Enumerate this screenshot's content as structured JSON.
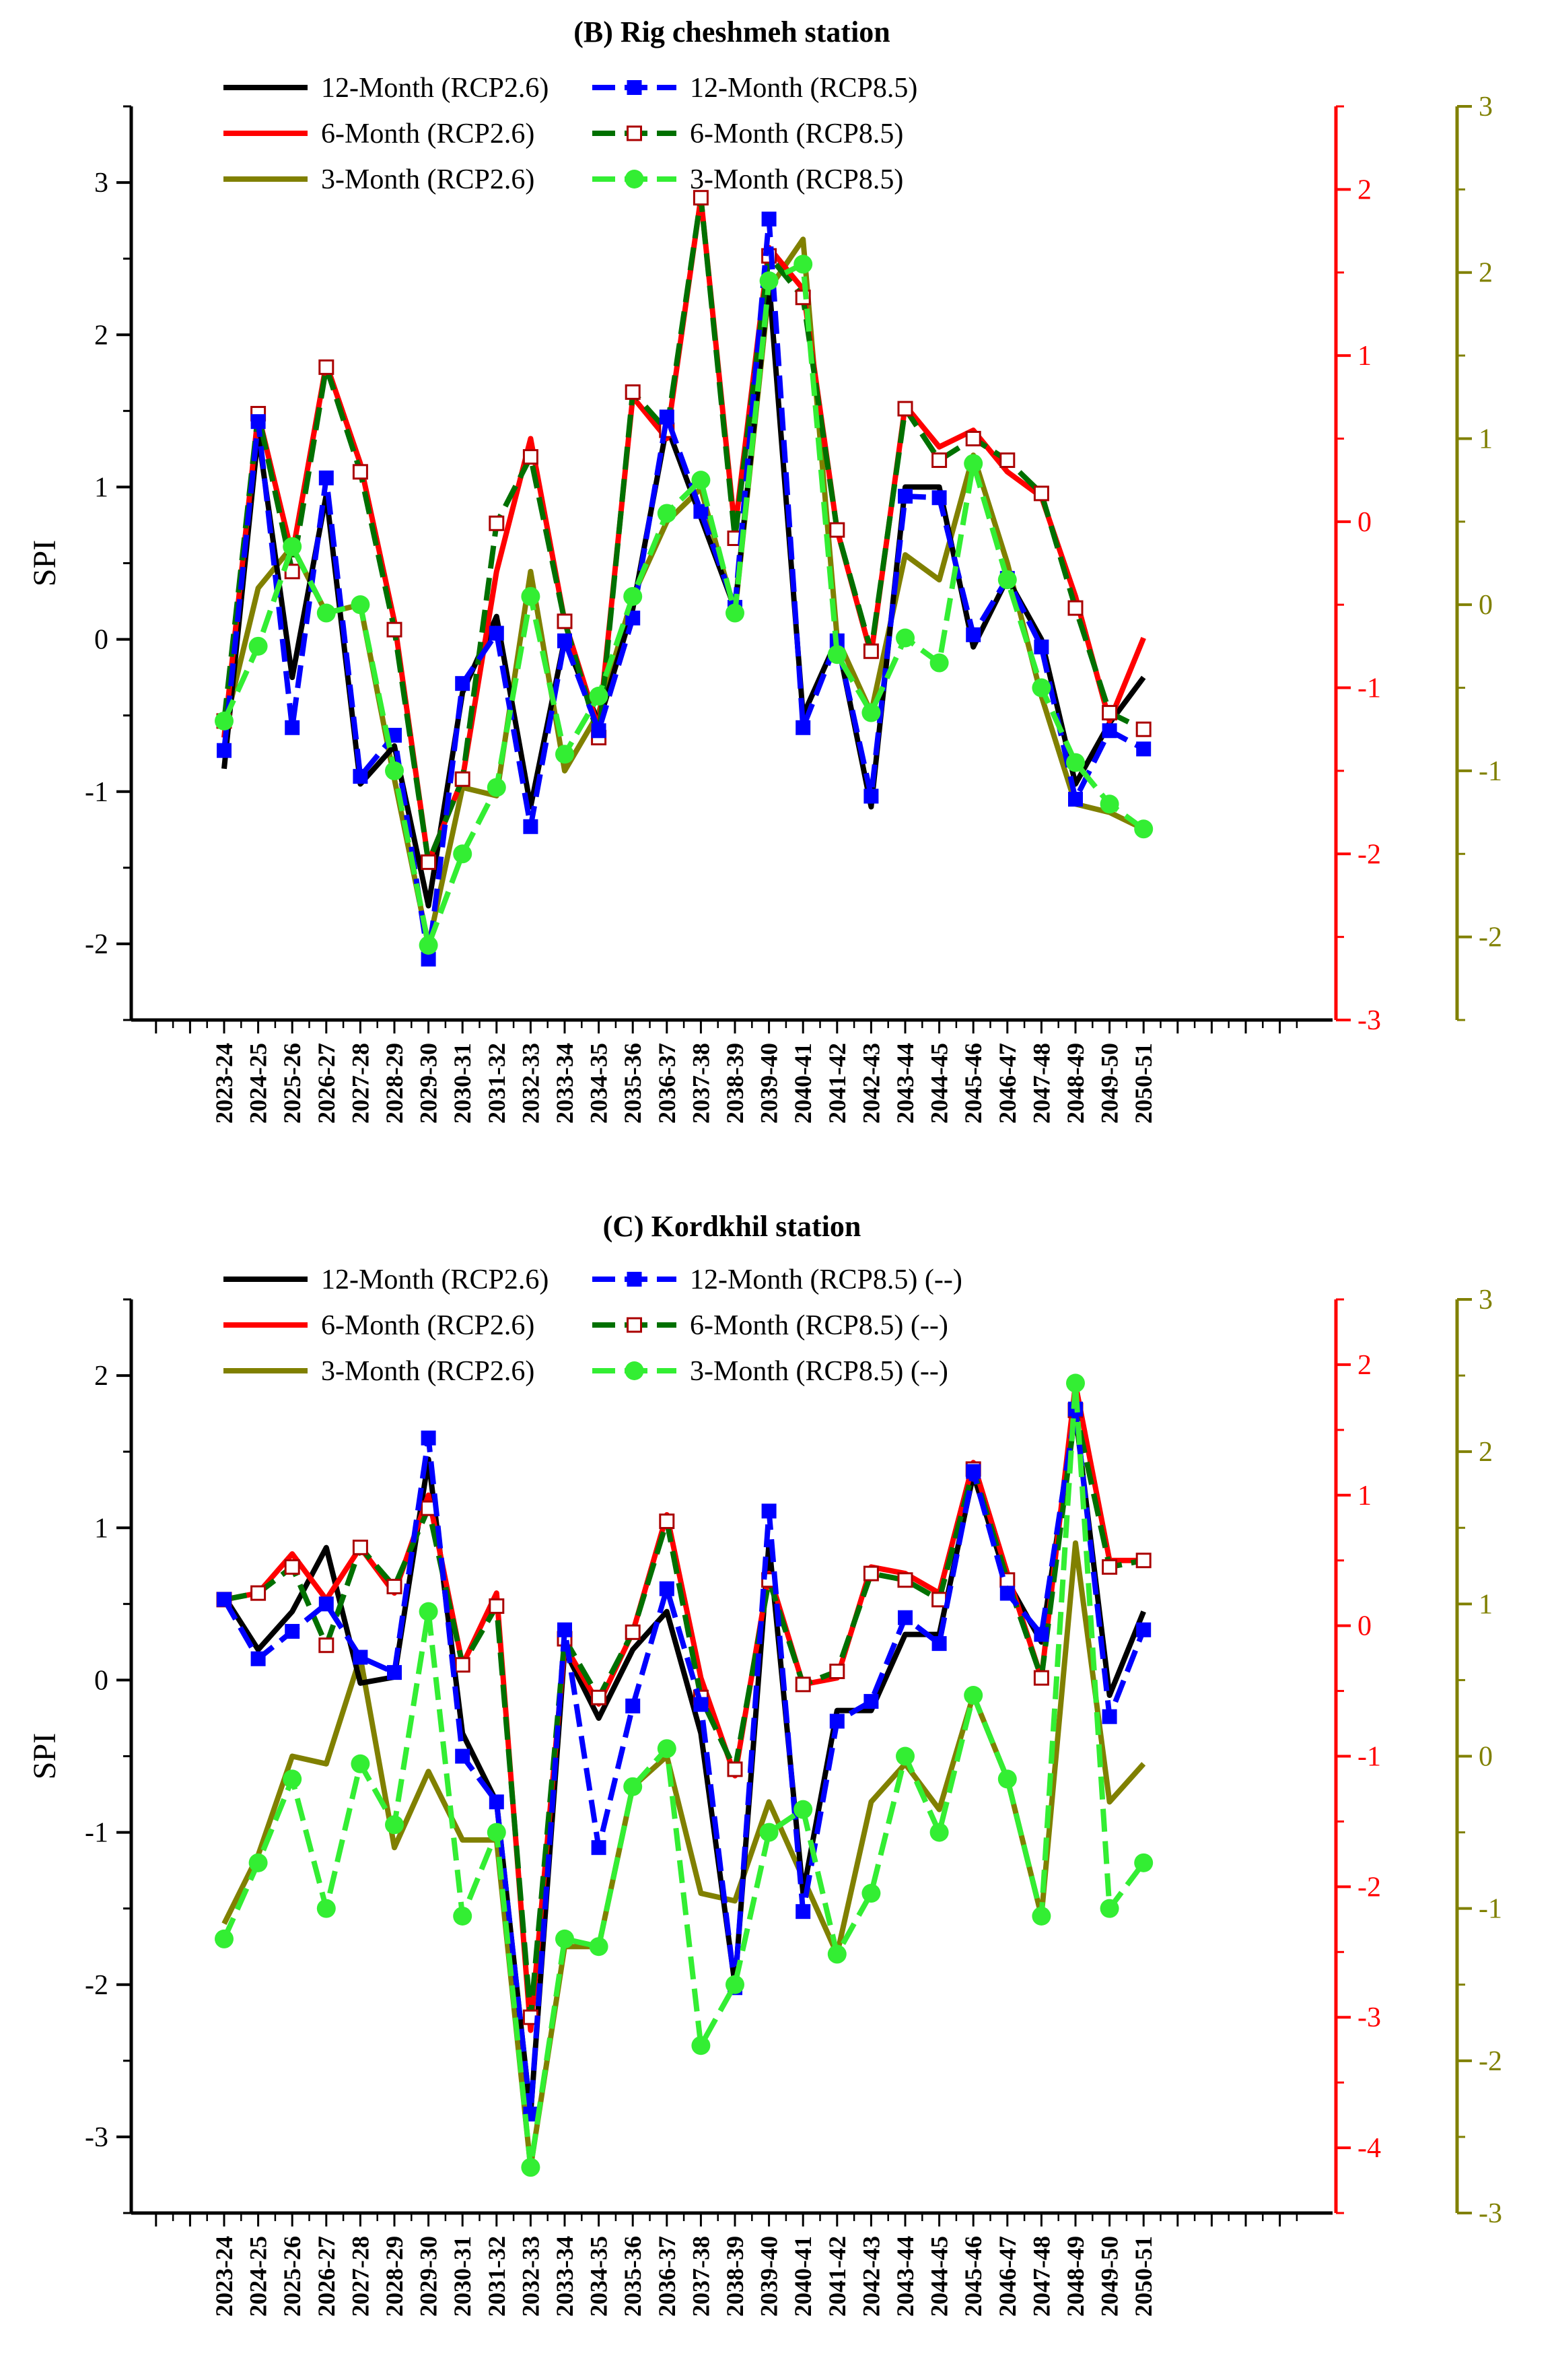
{
  "chart_data": [
    {
      "type": "line",
      "title": "(B) Rig cheshmeh station",
      "ylabel": "SPI",
      "xlabel": "",
      "categories": [
        "2023-24",
        "2024-25",
        "2025-26",
        "2026-27",
        "2027-28",
        "2028-29",
        "2029-30",
        "2030-31",
        "2031-32",
        "2032-33",
        "2033-34",
        "2034-35",
        "2035-36",
        "2036-37",
        "2037-38",
        "2038-39",
        "2039-40",
        "2040-41",
        "2041-42",
        "2042-43",
        "2043-44",
        "2044-45",
        "2045-46",
        "2046-47",
        "2047-48",
        "2048-49",
        "2049-50",
        "2050-51"
      ],
      "axes": {
        "left": {
          "ylim": [
            -2.5,
            3.5
          ],
          "ticks": [
            "-2",
            "-1",
            "0",
            "1",
            "2",
            "3"
          ],
          "tick_values": [
            -2,
            -1,
            0,
            1,
            2,
            3
          ],
          "color": "#000000"
        },
        "right1": {
          "ylim": [
            -3,
            2.5
          ],
          "ticks": [
            "-3",
            "-2",
            "-1",
            "0",
            "1",
            "2"
          ],
          "tick_values": [
            -3,
            -2,
            -1,
            0,
            1,
            2
          ],
          "color": "#ff0000"
        },
        "right2": {
          "ylim": [
            -2.5,
            3
          ],
          "ticks": [
            "-2",
            "-1",
            "0",
            "1",
            "2",
            "3"
          ],
          "tick_values": [
            -2,
            -1,
            0,
            1,
            2,
            3
          ],
          "color": "#808000"
        }
      },
      "legend": [
        "12-Month (RCP2.6)",
        "12-Month (RCP8.5)",
        "6-Month (RCP2.6)",
        "6-Month (RCP8.5)",
        "3-Month (RCP2.6)",
        "3-Month (RCP8.5)"
      ],
      "series": [
        {
          "name": "12-Month (RCP2.6)",
          "axis": "left",
          "color": "#000000",
          "style": "solid",
          "marker": "none",
          "values": [
            -0.85,
            1.35,
            -0.25,
            0.95,
            -0.95,
            -0.7,
            -1.75,
            -0.35,
            0.15,
            -1.1,
            0.0,
            -0.55,
            0.2,
            1.4,
            0.8,
            0.2,
            2.35,
            -0.5,
            0.0,
            -1.1,
            1.0,
            1.0,
            -0.05,
            0.4,
            0.0,
            -0.95,
            -0.55,
            -0.25
          ]
        },
        {
          "name": "12-Month (RCP8.5)",
          "axis": "left",
          "color": "#0000ff",
          "style": "dashed",
          "marker": "square-filled",
          "values": [
            -0.73,
            1.43,
            -0.58,
            1.06,
            -0.9,
            -0.63,
            -2.1,
            -0.29,
            0.04,
            -1.23,
            -0.01,
            -0.6,
            0.14,
            1.46,
            0.84,
            0.21,
            2.76,
            -0.58,
            -0.01,
            -1.03,
            0.94,
            0.93,
            0.03,
            0.4,
            -0.05,
            -1.05,
            -0.6,
            -0.72
          ]
        },
        {
          "name": "6-Month (RCP2.6)",
          "axis": "right1",
          "color": "#ff0000",
          "style": "solid",
          "marker": "none",
          "values": [
            -1.3,
            0.65,
            -0.2,
            0.95,
            0.35,
            -0.6,
            -2.05,
            -1.55,
            -0.3,
            0.5,
            -0.6,
            -1.25,
            0.75,
            0.5,
            1.95,
            -0.05,
            1.65,
            1.4,
            -0.05,
            -0.8,
            0.7,
            0.45,
            0.55,
            0.3,
            0.15,
            -0.45,
            -1.2,
            -0.7
          ]
        },
        {
          "name": "6-Month (RCP8.5)",
          "axis": "right1",
          "color": "#007000",
          "style": "dashed",
          "marker": "square-open-darkred",
          "values": [
            -1.2,
            0.65,
            -0.3,
            0.93,
            0.3,
            -0.65,
            -2.05,
            -1.55,
            -0.01,
            0.39,
            -0.6,
            -1.3,
            0.78,
            0.55,
            1.95,
            -0.1,
            1.6,
            1.35,
            -0.05,
            -0.78,
            0.68,
            0.37,
            0.5,
            0.37,
            0.17,
            -0.52,
            -1.15,
            -1.25
          ]
        },
        {
          "name": "3-Month (RCP2.6)",
          "axis": "right2",
          "color": "#808000",
          "style": "solid",
          "marker": "none",
          "values": [
            -0.75,
            0.1,
            0.35,
            -0.05,
            0.0,
            -1.05,
            -2.05,
            -1.1,
            -1.15,
            0.2,
            -1.0,
            -0.65,
            0.05,
            0.5,
            0.7,
            -0.05,
            1.9,
            2.2,
            -0.2,
            -0.65,
            0.3,
            0.15,
            0.9,
            0.25,
            -0.55,
            -1.2,
            -1.25,
            -1.35
          ]
        },
        {
          "name": "3-Month (RCP8.5)",
          "axis": "right2",
          "color": "#33ee33",
          "style": "dashed",
          "marker": "circle-filled",
          "values": [
            -0.7,
            -0.25,
            0.35,
            -0.05,
            0.0,
            -1.0,
            -2.05,
            -1.5,
            -1.1,
            0.05,
            -0.9,
            -0.55,
            0.05,
            0.55,
            0.75,
            -0.05,
            1.95,
            2.05,
            -0.3,
            -0.65,
            -0.2,
            -0.35,
            0.85,
            0.15,
            -0.5,
            -0.95,
            -1.2,
            -1.35
          ]
        }
      ]
    },
    {
      "type": "line",
      "title": "(C) Kordkhil station",
      "ylabel": "SPI",
      "xlabel": "",
      "categories": [
        "2023-24",
        "2024-25",
        "2025-26",
        "2026-27",
        "2027-28",
        "2028-29",
        "2029-30",
        "2030-31",
        "2031-32",
        "2032-33",
        "2033-34",
        "2034-35",
        "2035-36",
        "2036-37",
        "2037-38",
        "2038-39",
        "2039-40",
        "2040-41",
        "2041-42",
        "2042-43",
        "2043-44",
        "2044-45",
        "2045-46",
        "2046-47",
        "2047-48",
        "2048-49",
        "2049-50",
        "2050-51"
      ],
      "axes": {
        "left": {
          "ylim": [
            -3.5,
            2.5
          ],
          "ticks": [
            "-3",
            "-2",
            "-1",
            "0",
            "1",
            "2"
          ],
          "tick_values": [
            -3,
            -2,
            -1,
            0,
            1,
            2
          ],
          "color": "#000000"
        },
        "right1": {
          "ylim": [
            -4.5,
            2.5
          ],
          "ticks": [
            "-4",
            "-3",
            "-2",
            "-1",
            "0",
            "1",
            "2"
          ],
          "tick_values": [
            -4,
            -3,
            -2,
            -1,
            0,
            1,
            2
          ],
          "color": "#ff0000"
        },
        "right2": {
          "ylim": [
            -3,
            3
          ],
          "ticks": [
            "-3",
            "-2",
            "-1",
            "0",
            "1",
            "2",
            "3"
          ],
          "tick_values": [
            -3,
            -2,
            -1,
            0,
            1,
            2,
            3
          ],
          "color": "#808000"
        }
      },
      "legend": [
        "12-Month (RCP2.6)",
        "12-Month (RCP8.5) (--)",
        "6-Month (RCP2.6)",
        "6-Month (RCP8.5) (--)",
        "3-Month (RCP2.6)",
        "3-Month (RCP8.5) (--)"
      ],
      "series": [
        {
          "name": "12-Month (RCP2.6)",
          "axis": "left",
          "color": "#000000",
          "style": "solid",
          "marker": "none",
          "values": [
            0.55,
            0.2,
            0.45,
            0.87,
            -0.02,
            0.02,
            1.45,
            -0.35,
            -0.8,
            -2.85,
            0.2,
            -0.25,
            0.2,
            0.45,
            -0.35,
            -2.0,
            0.9,
            -1.4,
            -0.2,
            -0.2,
            0.3,
            0.3,
            1.35,
            0.65,
            0.25,
            1.75,
            -0.1,
            0.45
          ]
        },
        {
          "name": "12-Month (RCP8.5) (--)",
          "axis": "left",
          "color": "#0000ff",
          "style": "dashed",
          "marker": "square-filled",
          "values": [
            0.53,
            0.14,
            0.32,
            0.5,
            0.15,
            0.05,
            1.59,
            -0.5,
            -0.8,
            -2.85,
            0.33,
            -1.1,
            -0.17,
            0.6,
            -0.16,
            -2.02,
            1.11,
            -1.52,
            -0.27,
            -0.14,
            0.41,
            0.24,
            1.37,
            0.57,
            0.3,
            1.78,
            -0.24,
            0.33
          ]
        },
        {
          "name": "6-Month (RCP2.6)",
          "axis": "right1",
          "color": "#ff0000",
          "style": "solid",
          "marker": "none",
          "values": [
            0.2,
            0.25,
            0.55,
            0.2,
            0.6,
            0.25,
            1.0,
            -0.3,
            0.25,
            -3.1,
            -0.15,
            -0.6,
            -0.05,
            0.85,
            -0.4,
            -1.15,
            0.4,
            -0.45,
            -0.4,
            0.45,
            0.4,
            0.25,
            1.25,
            0.4,
            -0.4,
            1.85,
            0.5,
            0.5
          ]
        },
        {
          "name": "6-Month (RCP8.5) (--)",
          "axis": "right1",
          "color": "#007000",
          "style": "dashed",
          "marker": "square-open-darkred",
          "values": [
            0.2,
            0.25,
            0.45,
            -0.15,
            0.6,
            0.3,
            0.9,
            -0.3,
            0.15,
            -3.0,
            -0.1,
            -0.55,
            -0.05,
            0.8,
            -0.55,
            -1.1,
            0.35,
            -0.45,
            -0.35,
            0.4,
            0.35,
            0.2,
            1.2,
            0.35,
            -0.4,
            1.65,
            0.45,
            0.5
          ]
        },
        {
          "name": "3-Month (RCP2.6)",
          "axis": "right2",
          "color": "#808000",
          "style": "solid",
          "marker": "none",
          "values": [
            -1.1,
            -0.65,
            0.0,
            -0.05,
            0.65,
            -0.6,
            -0.1,
            -0.55,
            -0.55,
            -2.7,
            -1.25,
            -1.25,
            -0.2,
            0.0,
            -0.9,
            -0.95,
            -0.3,
            -0.8,
            -1.3,
            -0.3,
            -0.05,
            -0.35,
            0.4,
            -0.15,
            -1.05,
            1.4,
            -0.3,
            -0.05
          ]
        },
        {
          "name": "3-Month (RCP8.5) (--)",
          "axis": "right2",
          "color": "#33ee33",
          "style": "dashed",
          "marker": "circle-filled",
          "values": [
            -1.2,
            -0.7,
            -0.15,
            -1.0,
            -0.05,
            -0.45,
            0.95,
            -1.05,
            -0.5,
            -2.7,
            -1.2,
            -1.25,
            -0.2,
            0.05,
            -1.9,
            -1.5,
            -0.5,
            -0.35,
            -1.3,
            -0.9,
            0.0,
            -0.5,
            0.4,
            -0.15,
            -1.05,
            2.45,
            -1.0,
            -0.7
          ]
        }
      ]
    }
  ]
}
